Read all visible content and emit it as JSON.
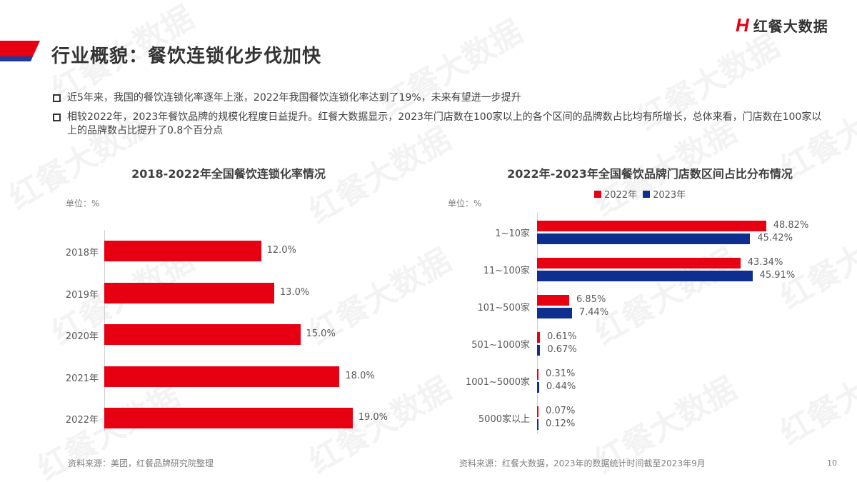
{
  "header": {
    "title": "行业概貌：餐饮连锁化步伐加快",
    "logo_mark": "H",
    "logo_text": "红餐大数据",
    "watermark_text": "红餐大数据"
  },
  "bullets": [
    "近5年来，我国的餐饮连锁化率逐年上涨，2022年我国餐饮连锁化率达到了19%，未来有望进一步提升",
    "相较2022年，2023年餐饮品牌的规模化程度日益提升。红餐大数据显示，2023年门店数在100家以上的各个区间的品牌数占比均有所增长，总体来看，门店数在100家以上的品牌数占比提升了0.8个百分点"
  ],
  "colors": {
    "red": "#e60012",
    "blue": "#0e2f8f",
    "title_bar_red": "#e60012",
    "title_bar_blue": "#1e3a9a"
  },
  "left_chart": {
    "title": "2018-2022年全国餐饮连锁化率情况",
    "unit": "单位：%",
    "source": "资料来源：美团，红餐品牌研究院整理"
  },
  "right_chart": {
    "title": "2022年-2023年全国餐饮品牌门店数区间占比分布情况",
    "unit": "单位：%",
    "legend": [
      "2022年",
      "2023年"
    ],
    "source": "资料来源：红餐大数据，2023年的数据统计时间截至2023年9月"
  },
  "page_number": "10",
  "chart_data": [
    {
      "type": "bar",
      "orientation": "horizontal",
      "title": "2018-2022年全国餐饮连锁化率情况",
      "ylabel": "单位：%",
      "categories": [
        "2018年",
        "2019年",
        "2020年",
        "2021年",
        "2022年"
      ],
      "values": [
        12.0,
        13.0,
        15.0,
        18.0,
        19.0
      ],
      "value_labels": [
        "12.0%",
        "13.0%",
        "15.0%",
        "18.0%",
        "19.0%"
      ],
      "color": "#e60012",
      "grid": false
    },
    {
      "type": "bar",
      "orientation": "horizontal",
      "title": "2022年-2023年全国餐饮品牌门店数区间占比分布情况",
      "ylabel": "单位：%",
      "categories": [
        "1~10家",
        "11~100家",
        "101~500家",
        "501~1000家",
        "1001~5000家",
        "5000家以上"
      ],
      "series": [
        {
          "name": "2022年",
          "color": "#e60012",
          "values": [
            48.82,
            43.34,
            6.85,
            0.61,
            0.31,
            0.07
          ],
          "value_labels": [
            "48.82%",
            "43.34%",
            "6.85%",
            "0.61%",
            "0.31%",
            "0.07%"
          ]
        },
        {
          "name": "2023年",
          "color": "#0e2f8f",
          "values": [
            45.42,
            45.91,
            7.44,
            0.67,
            0.44,
            0.12
          ],
          "value_labels": [
            "45.42%",
            "45.91%",
            "7.44%",
            "0.67%",
            "0.44%",
            "0.12%"
          ]
        }
      ],
      "legend_position": "top",
      "grid": false
    }
  ]
}
